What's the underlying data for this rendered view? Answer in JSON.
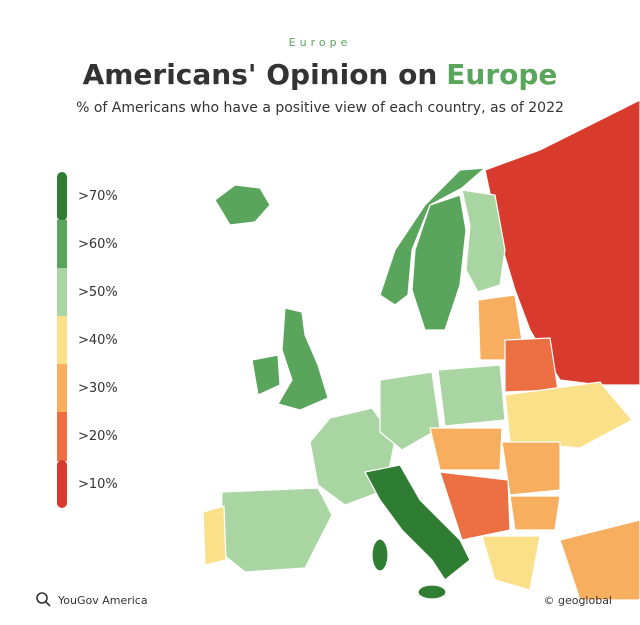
{
  "header": {
    "kicker": "Europe",
    "title": "Americans' Opinion on",
    "title_highlight": "Europe",
    "subtitle": "% of Americans who have a positive view of each country, as of 2022"
  },
  "legend": {
    "items": [
      {
        "label": ">70%",
        "color": "#2e7d32"
      },
      {
        "label": ">60%",
        "color": "#5aa55c"
      },
      {
        "label": ">50%",
        "color": "#a8d5a2"
      },
      {
        "label": ">40%",
        "color": "#fbe08a"
      },
      {
        "label": ">30%",
        "color": "#f7ae5e"
      },
      {
        "label": ">20%",
        "color": "#ec6f43"
      },
      {
        "label": ">10%",
        "color": "#d93a2e"
      }
    ]
  },
  "footer": {
    "source": "YouGov America",
    "credit": "© geoglobal"
  }
}
